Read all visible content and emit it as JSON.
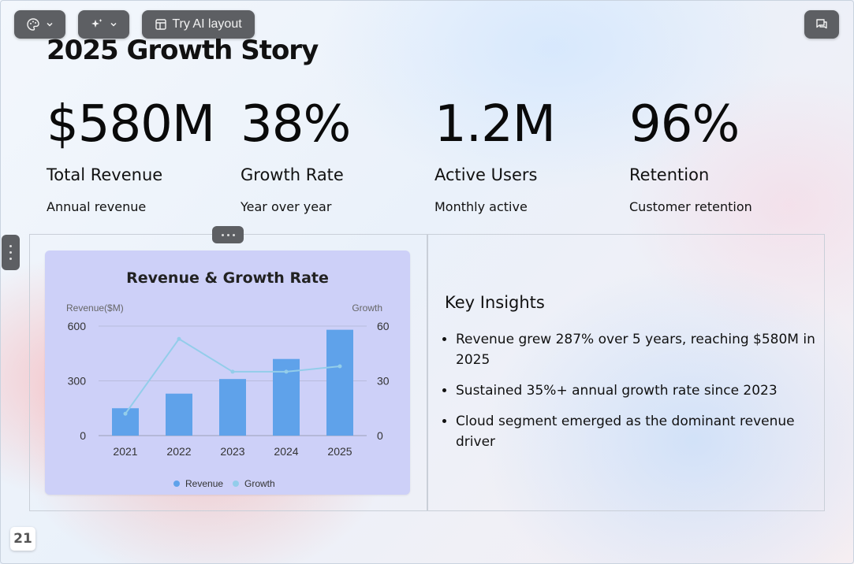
{
  "toolbar": {
    "theme_icon": "palette-icon",
    "magic_icon": "sparkle-icon",
    "ai_layout_label": "Try AI layout",
    "ai_layout_icon": "layout-icon",
    "comment_icon": "comment-icon"
  },
  "slide": {
    "title": "2025 Growth Story",
    "stats": [
      {
        "value": "$580M",
        "name": "Total Revenue",
        "desc": "Annual revenue"
      },
      {
        "value": "38%",
        "name": "Growth Rate",
        "desc": "Year over year"
      },
      {
        "value": "1.2M",
        "name": "Active Users",
        "desc": "Monthly active"
      },
      {
        "value": "96%",
        "name": "Retention",
        "desc": "Customer retention"
      }
    ],
    "insights": {
      "title": "Key Insights",
      "items": [
        "Revenue grew 287% over 5 years, reaching $580M in 2025",
        "Sustained 35%+ annual growth rate since 2023",
        "Cloud segment emerged as the dominant revenue driver"
      ]
    },
    "page_number": "21"
  },
  "colors": {
    "bar": "#5fa2ea",
    "line": "#93cdea",
    "chart_bg": "#cdd0f8"
  },
  "chart_data": {
    "type": "bar",
    "title": "Revenue & Growth Rate",
    "categories": [
      "2021",
      "2022",
      "2023",
      "2024",
      "2025"
    ],
    "series": [
      {
        "name": "Revenue",
        "type": "bar",
        "axis": "left",
        "values": [
          150,
          230,
          310,
          420,
          580
        ]
      },
      {
        "name": "Growth",
        "type": "line",
        "axis": "right",
        "values": [
          12,
          53,
          35,
          35,
          38
        ]
      }
    ],
    "ylabel": "Revenue($M)",
    "y2label": "Growth",
    "ylim": [
      0,
      600
    ],
    "y2lim": [
      0,
      60
    ],
    "yticks": [
      "0",
      "300",
      "600"
    ],
    "y2ticks": [
      "0",
      "30",
      "60"
    ],
    "grid": true,
    "legend": "bottom"
  }
}
